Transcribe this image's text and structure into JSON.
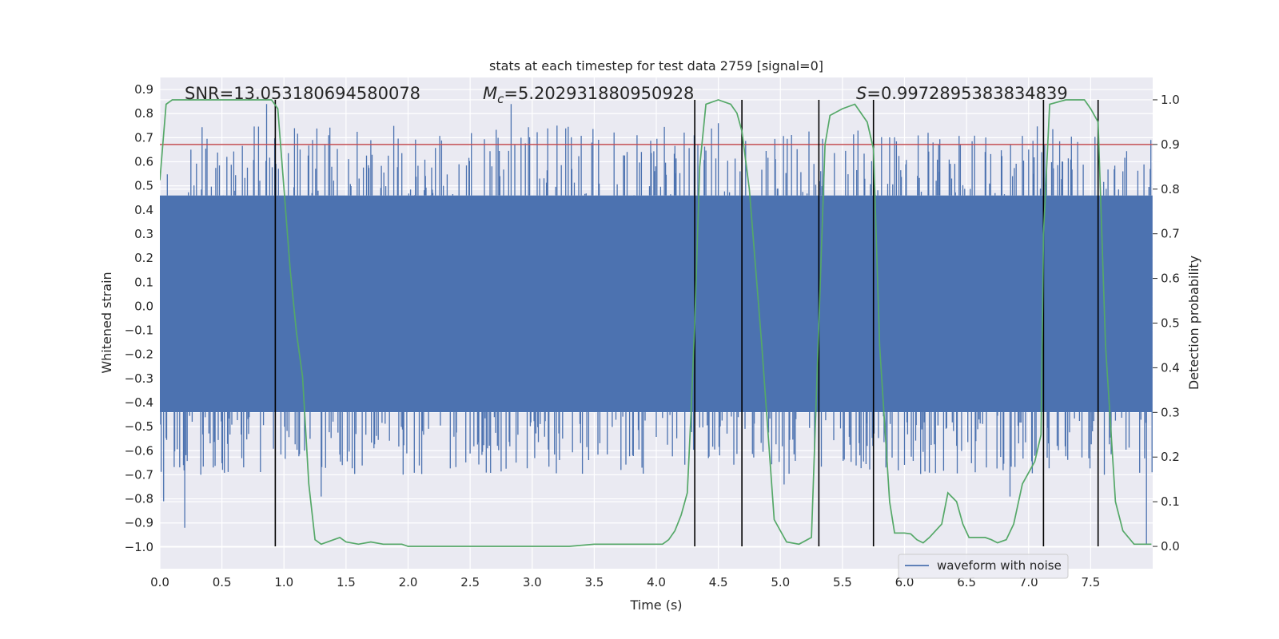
{
  "chart_data": {
    "type": "line",
    "title": "stats at each timestep for test data 2759 [signal=0]",
    "xlabel": "Time (s)",
    "ylabel": "Whitened strain",
    "y2label": "Detection probability",
    "xlim": [
      0.0,
      8.0
    ],
    "ylim": [
      -1.09,
      0.95
    ],
    "y2lim": [
      -0.05,
      1.05
    ],
    "x_ticks": [
      "0.0",
      "0.5",
      "1.0",
      "1.5",
      "2.0",
      "2.5",
      "3.0",
      "3.5",
      "4.0",
      "4.5",
      "5.0",
      "5.5",
      "6.0",
      "6.5",
      "7.0",
      "7.5"
    ],
    "y_ticks": [
      "0.9",
      "0.8",
      "0.7",
      "0.6",
      "0.5",
      "0.4",
      "0.3",
      "0.2",
      "0.1",
      "0.0",
      "-0.1",
      "-0.2",
      "-0.3",
      "-0.4",
      "-0.5",
      "-0.6",
      "-0.7",
      "-0.8",
      "-0.9",
      "-1.0"
    ],
    "y2_ticks": [
      "1.0",
      "0.9",
      "0.8",
      "0.7",
      "0.6",
      "0.5",
      "0.4",
      "0.3",
      "0.2",
      "0.1",
      "0.0"
    ],
    "annotations": {
      "snr": "SNR=13.053180694580078",
      "mc_symbol": "M",
      "mc_sub": "c",
      "mc_value": "=5.202931880950928",
      "s_symbol": "S",
      "s_value": "=0.9972895383834839"
    },
    "legend": {
      "label": "waveform with noise",
      "position": "lower-right"
    },
    "threshold": {
      "value": 0.9,
      "axis": "right",
      "color": "#c44e52"
    },
    "boundaries_s": [
      0.93,
      4.31,
      4.69,
      5.31,
      5.75,
      7.12,
      7.56
    ],
    "boundary_range_y2": [
      0.0,
      1.0
    ],
    "waveform": {
      "name": "waveform with noise",
      "color": "#4c72b0",
      "t_start": 0.0,
      "t_end": 7.995,
      "n_samples": 1600,
      "core_band": [
        -0.44,
        0.46
      ],
      "seed": 2759,
      "peaks": [
        {
          "t": 0.86,
          "v": 0.84
        },
        {
          "t": 2.83,
          "v": 0.84
        },
        {
          "t": 0.2,
          "v": -0.92
        },
        {
          "t": 0.03,
          "v": -0.81
        },
        {
          "t": 1.3,
          "v": -0.79
        },
        {
          "t": 6.85,
          "v": -0.79
        },
        {
          "t": 7.95,
          "v": -0.99
        },
        {
          "t": 5.03,
          "v": -0.74
        },
        {
          "t": 4.5,
          "v": 0.76
        },
        {
          "t": 3.2,
          "v": 0.75
        }
      ]
    },
    "probability": {
      "name": "detection probability",
      "color": "#55a868",
      "points": [
        [
          0.0,
          0.82
        ],
        [
          0.05,
          0.99
        ],
        [
          0.1,
          1.0
        ],
        [
          0.3,
          1.0
        ],
        [
          0.6,
          1.0
        ],
        [
          0.9,
          1.0
        ],
        [
          0.95,
          0.98
        ],
        [
          1.0,
          0.8
        ],
        [
          1.05,
          0.62
        ],
        [
          1.1,
          0.48
        ],
        [
          1.15,
          0.38
        ],
        [
          1.2,
          0.14
        ],
        [
          1.25,
          0.015
        ],
        [
          1.3,
          0.005
        ],
        [
          1.4,
          0.015
        ],
        [
          1.45,
          0.02
        ],
        [
          1.5,
          0.01
        ],
        [
          1.6,
          0.005
        ],
        [
          1.7,
          0.01
        ],
        [
          1.8,
          0.005
        ],
        [
          1.95,
          0.005
        ],
        [
          2.0,
          0.0
        ],
        [
          2.5,
          0.0
        ],
        [
          3.0,
          0.0
        ],
        [
          3.3,
          0.0
        ],
        [
          3.5,
          0.005
        ],
        [
          3.7,
          0.005
        ],
        [
          3.9,
          0.005
        ],
        [
          4.05,
          0.005
        ],
        [
          4.1,
          0.015
        ],
        [
          4.15,
          0.035
        ],
        [
          4.2,
          0.07
        ],
        [
          4.25,
          0.12
        ],
        [
          4.28,
          0.3
        ],
        [
          4.31,
          0.5
        ],
        [
          4.35,
          0.85
        ],
        [
          4.4,
          0.99
        ],
        [
          4.5,
          1.0
        ],
        [
          4.6,
          0.99
        ],
        [
          4.65,
          0.97
        ],
        [
          4.69,
          0.93
        ],
        [
          4.75,
          0.8
        ],
        [
          4.85,
          0.45
        ],
        [
          4.95,
          0.06
        ],
        [
          5.05,
          0.01
        ],
        [
          5.15,
          0.005
        ],
        [
          5.25,
          0.02
        ],
        [
          5.31,
          0.5
        ],
        [
          5.36,
          0.9
        ],
        [
          5.4,
          0.965
        ],
        [
          5.5,
          0.98
        ],
        [
          5.6,
          0.99
        ],
        [
          5.7,
          0.95
        ],
        [
          5.75,
          0.89
        ],
        [
          5.8,
          0.45
        ],
        [
          5.88,
          0.1
        ],
        [
          5.92,
          0.03
        ],
        [
          6.0,
          0.03
        ],
        [
          6.05,
          0.028
        ],
        [
          6.1,
          0.015
        ],
        [
          6.15,
          0.008
        ],
        [
          6.2,
          0.02
        ],
        [
          6.3,
          0.05
        ],
        [
          6.35,
          0.12
        ],
        [
          6.42,
          0.1
        ],
        [
          6.47,
          0.05
        ],
        [
          6.52,
          0.02
        ],
        [
          6.6,
          0.02
        ],
        [
          6.65,
          0.02
        ],
        [
          6.7,
          0.015
        ],
        [
          6.75,
          0.008
        ],
        [
          6.82,
          0.015
        ],
        [
          6.88,
          0.05
        ],
        [
          6.95,
          0.14
        ],
        [
          7.05,
          0.19
        ],
        [
          7.1,
          0.25
        ],
        [
          7.12,
          0.7
        ],
        [
          7.17,
          0.99
        ],
        [
          7.3,
          1.0
        ],
        [
          7.45,
          1.0
        ],
        [
          7.5,
          0.98
        ],
        [
          7.56,
          0.95
        ],
        [
          7.62,
          0.45
        ],
        [
          7.7,
          0.1
        ],
        [
          7.76,
          0.035
        ],
        [
          7.85,
          0.005
        ],
        [
          7.99,
          0.005
        ]
      ]
    }
  }
}
